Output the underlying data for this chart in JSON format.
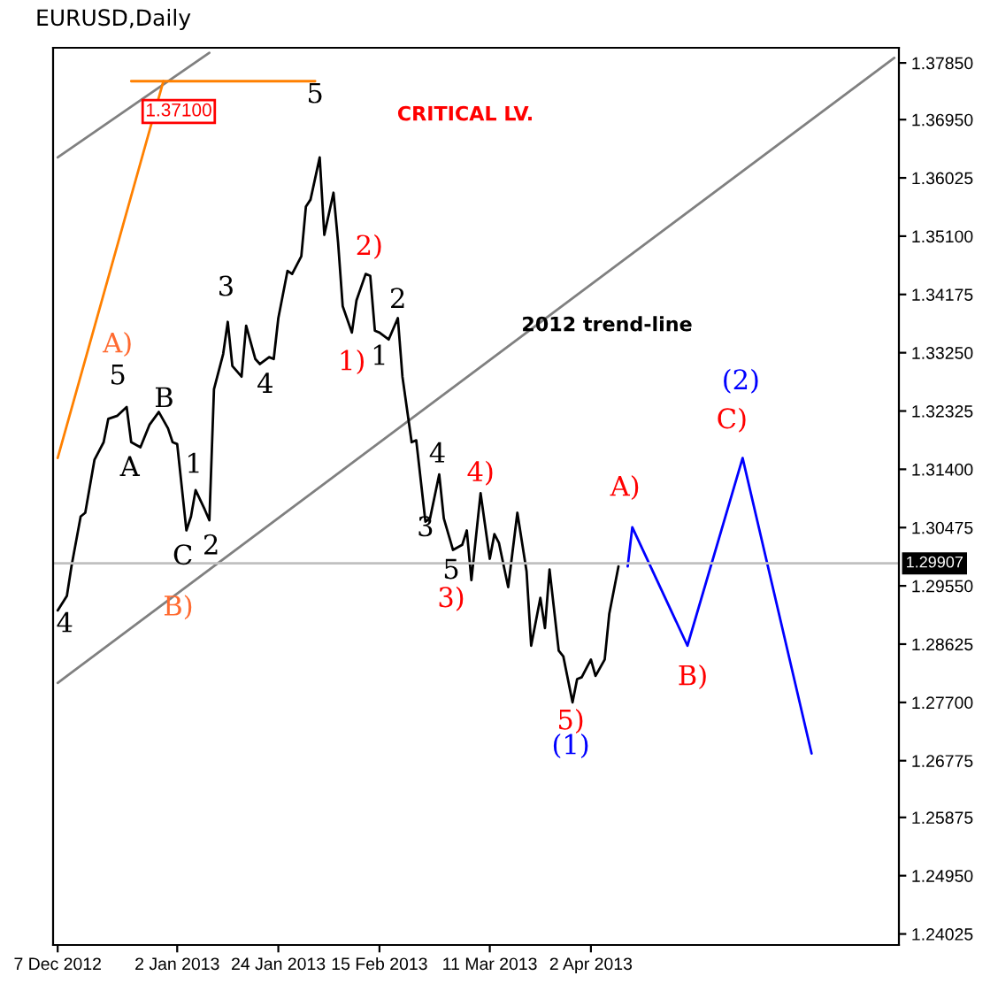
{
  "chart_data": {
    "type": "line",
    "title": "EURUSD,Daily",
    "xlim": [
      "2012-12-06",
      "2013-06-08"
    ],
    "ylim": [
      1.2385,
      1.3809
    ],
    "xticks": [
      {
        "value": "2012-12-07",
        "label": "7 Dec 2012"
      },
      {
        "value": "2013-01-02",
        "label": "2 Jan 2013"
      },
      {
        "value": "2013-01-24",
        "label": "24 Jan 2013"
      },
      {
        "value": "2013-02-15",
        "label": "15 Feb 2013"
      },
      {
        "value": "2013-03-11",
        "label": "11 Mar 2013"
      },
      {
        "value": "2013-04-02",
        "label": "2 Apr 2013"
      }
    ],
    "yticks": [
      {
        "value": 1.3785,
        "label": "1.37850"
      },
      {
        "value": 1.3695,
        "label": "1.36950"
      },
      {
        "value": 1.36025,
        "label": "1.36025"
      },
      {
        "value": 1.351,
        "label": "1.35100"
      },
      {
        "value": 1.34175,
        "label": "1.34175"
      },
      {
        "value": 1.3325,
        "label": "1.33250"
      },
      {
        "value": 1.32325,
        "label": "1.32325"
      },
      {
        "value": 1.314,
        "label": "1.31400"
      },
      {
        "value": 1.30475,
        "label": "1.30475"
      },
      {
        "value": 1.2955,
        "label": "1.29550"
      },
      {
        "value": 1.28625,
        "label": "1.28625"
      },
      {
        "value": 1.277,
        "label": "1.27700"
      },
      {
        "value": 1.26775,
        "label": "1.26775"
      },
      {
        "value": 1.25875,
        "label": "1.25875"
      },
      {
        "value": 1.2495,
        "label": "1.24950"
      },
      {
        "value": 1.24025,
        "label": "1.24025"
      }
    ],
    "marker": "none",
    "line_style": "solid",
    "series": [
      {
        "color": "#808080",
        "x": [
          "2012-12-07",
          "2013-01-09"
        ],
        "values": [
          1.3635,
          1.3801
        ]
      },
      {
        "color": "#808080",
        "x": [
          "2012-12-07",
          "2013-06-07"
        ],
        "values": [
          1.2801,
          1.3793
        ]
      },
      {
        "color": "#ff8000",
        "x": [
          "2012-12-07",
          "2012-12-30"
        ],
        "values": [
          1.3158,
          1.3756
        ]
      },
      {
        "color": "#ff8000",
        "x": [
          "2012-12-23",
          "2013-02-01"
        ],
        "values": [
          1.3756,
          1.3756
        ]
      },
      {
        "color": "#000000",
        "x": [
          "2012-12-07",
          "2012-12-09",
          "2012-12-10",
          "2012-12-12",
          "2012-12-13",
          "2012-12-15",
          "2012-12-17",
          "2012-12-18",
          "2012-12-20",
          "2012-12-22",
          "2012-12-23",
          "2012-12-25",
          "2012-12-27",
          "2012-12-29",
          "2012-12-31",
          "2013-01-01",
          "2013-01-02",
          "2013-01-04",
          "2013-01-05",
          "2013-01-06",
          "2013-01-08",
          "2013-01-09",
          "2013-01-10",
          "2013-01-12",
          "2013-01-13",
          "2013-01-14",
          "2013-01-16",
          "2013-01-17",
          "2013-01-19",
          "2013-01-20",
          "2013-01-22",
          "2013-01-23",
          "2013-01-24",
          "2013-01-26",
          "2013-01-27",
          "2013-01-29",
          "2013-01-30",
          "2013-01-31",
          "2013-02-02",
          "2013-02-03",
          "2013-02-05",
          "2013-02-06",
          "2013-02-07",
          "2013-02-09",
          "2013-02-10",
          "2013-02-12",
          "2013-02-13",
          "2013-02-14",
          "2013-02-15",
          "2013-02-17",
          "2013-02-19",
          "2013-02-20",
          "2013-02-22",
          "2013-02-23",
          "2013-02-25",
          "2013-02-26",
          "2013-02-28",
          "2013-03-01",
          "2013-03-03",
          "2013-03-05",
          "2013-03-06",
          "2013-03-07",
          "2013-03-09",
          "2013-03-11",
          "2013-03-12",
          "2013-03-13",
          "2013-03-15",
          "2013-03-17",
          "2013-03-19",
          "2013-03-20",
          "2013-03-22",
          "2013-03-23",
          "2013-03-24",
          "2013-03-26",
          "2013-03-27",
          "2013-03-29",
          "2013-03-30",
          "2013-03-31",
          "2013-04-02",
          "2013-04-03",
          "2013-04-05",
          "2013-04-06",
          "2013-04-08"
        ],
        "values": [
          1.2916,
          1.2939,
          1.2986,
          1.3065,
          1.3071,
          1.3155,
          1.3183,
          1.322,
          1.3225,
          1.3239,
          1.3183,
          1.3175,
          1.3211,
          1.3231,
          1.3205,
          1.3183,
          1.318,
          1.3043,
          1.3065,
          1.3107,
          1.3076,
          1.3059,
          1.3267,
          1.3323,
          1.3374,
          1.3304,
          1.3287,
          1.3368,
          1.3315,
          1.3307,
          1.3318,
          1.3315,
          1.338,
          1.3455,
          1.345,
          1.3478,
          1.3557,
          1.3568,
          1.3635,
          1.3512,
          1.3579,
          1.35,
          1.3399,
          1.3357,
          1.3408,
          1.345,
          1.3447,
          1.336,
          1.3357,
          1.3346,
          1.338,
          1.3287,
          1.3183,
          1.3186,
          1.3057,
          1.3062,
          1.3132,
          1.3062,
          1.3012,
          1.302,
          1.3043,
          1.2964,
          1.3102,
          1.2998,
          1.3037,
          1.3023,
          1.2953,
          1.3071,
          1.2978,
          1.286,
          1.2936,
          1.2888,
          1.2981,
          1.2852,
          1.2843,
          1.277,
          1.2807,
          1.281,
          1.2838,
          1.2812,
          1.2838,
          1.2911,
          1.2986
        ]
      },
      {
        "color": "#0000ff",
        "x": [
          "2013-04-10",
          "2013-04-11",
          "2013-04-23",
          "2013-05-05",
          "2013-05-20"
        ],
        "values": [
          1.2986,
          1.3048,
          1.286,
          1.3158,
          1.2689
        ]
      }
    ],
    "ref_lines": [
      {
        "axis": "y",
        "value": 1.29907,
        "label": "1.29907",
        "color": "#c0c0c0"
      }
    ],
    "annotations": [
      "1.37100",
      {
        "text": "5",
        "x": "2013-02-01",
        "y": 1.3756
      },
      "CRITICAL LV.",
      {
        "text": "A)",
        "x": "2012-12-22",
        "y": 1.3239
      },
      {
        "text": "5",
        "x": "2012-12-22",
        "y": 1.3239
      },
      {
        "text": "B",
        "x": "2012-12-29",
        "y": 1.3231
      },
      {
        "text": "A",
        "x": "2012-12-25",
        "y": 1.3175
      },
      {
        "text": "1",
        "x": "2013-01-06",
        "y": 1.3107
      },
      {
        "text": "2",
        "x": "2013-01-09",
        "y": 1.3059
      },
      {
        "text": "C",
        "x": "2013-01-04",
        "y": 1.3043
      },
      {
        "text": "3",
        "x": "2013-01-13",
        "y": 1.3374
      },
      {
        "text": "4",
        "x": "2013-01-20",
        "y": 1.3307
      },
      {
        "text": "2)",
        "x": "2013-02-12",
        "y": 1.345
      },
      {
        "text": "1)",
        "x": "2013-02-09",
        "y": 1.3357
      },
      {
        "text": "1",
        "x": "2013-02-15",
        "y": 1.3357
      },
      {
        "text": "2",
        "x": "2013-02-19",
        "y": 1.338
      },
      {
        "text": "4",
        "x": "2013-02-28",
        "y": 1.3132
      },
      {
        "text": "4)",
        "x": "2013-03-09",
        "y": 1.3102
      },
      {
        "text": "3",
        "x": "2013-02-25",
        "y": 1.3057
      },
      {
        "text": "4",
        "x": "2012-12-07",
        "y": 1.2916
      },
      {
        "text": "B)",
        "x": "2013-01-03",
        "y": 1.2948
      },
      {
        "text": "5",
        "x": "2013-03-03",
        "y": 1.3012
      },
      {
        "text": "3)",
        "x": "2013-03-03",
        "y": 1.3012
      },
      "2012 trend-line",
      {
        "text": "A)",
        "x": "2013-04-11",
        "y": 1.3048
      },
      {
        "text": "B)",
        "x": "2013-04-23",
        "y": 1.286
      },
      {
        "text": "5)",
        "x": "2013-03-29",
        "y": 1.277
      },
      {
        "text": "(1)",
        "x": "2013-03-29",
        "y": 1.277
      },
      {
        "text": "C)",
        "x": "2013-05-05",
        "y": 1.3158
      },
      {
        "text": "(2)",
        "x": "2013-05-05",
        "y": 1.3158
      }
    ]
  }
}
